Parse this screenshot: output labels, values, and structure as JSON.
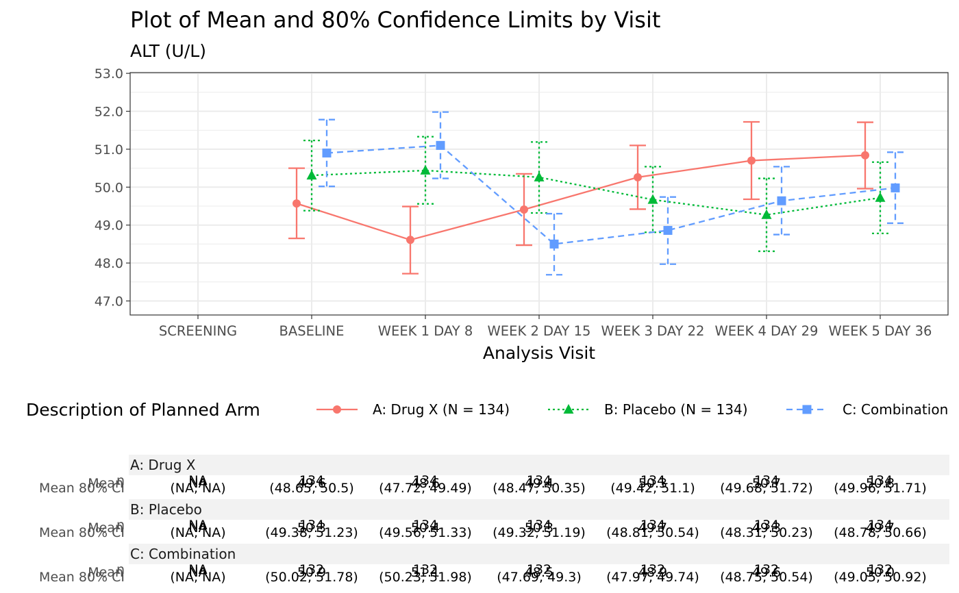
{
  "chart_data": {
    "type": "line",
    "title": "Plot of Mean and 80% Confidence Limits by Visit",
    "subtitle": "ALT (U/L)",
    "xlabel": "Analysis Visit",
    "ylabel": "",
    "ylim": [
      46.65,
      53.05
    ],
    "yticks": [
      "47.0",
      "48.0",
      "49.0",
      "50.0",
      "51.0",
      "52.0",
      "53.0"
    ],
    "ytick_values": [
      47,
      48,
      49,
      50,
      51,
      52,
      53
    ],
    "categories": [
      "SCREENING",
      "BASELINE",
      "WEEK 1 DAY 8",
      "WEEK 2 DAY 15",
      "WEEK 3 DAY 22",
      "WEEK 4 DAY 29",
      "WEEK 5 DAY 36"
    ],
    "grid": true,
    "legend": {
      "title": "Description of Planned Arm",
      "position": "bottom"
    },
    "series": [
      {
        "name": "A: Drug X (N = 134)",
        "color": "#F8766D",
        "marker": "circle",
        "linestyle": "solid",
        "means": [
          null,
          49.57,
          48.61,
          49.41,
          50.26,
          50.7,
          50.84
        ],
        "lower": [
          null,
          48.65,
          47.72,
          48.47,
          49.42,
          49.68,
          49.96
        ],
        "upper": [
          null,
          50.5,
          49.49,
          50.35,
          51.1,
          51.72,
          51.71
        ]
      },
      {
        "name": "B: Placebo (N = 134)",
        "color": "#00BA38",
        "marker": "triangle",
        "linestyle": "dotted",
        "means": [
          null,
          50.31,
          50.44,
          50.26,
          49.67,
          49.27,
          49.72
        ],
        "lower": [
          null,
          49.38,
          49.56,
          49.32,
          48.81,
          48.31,
          48.78
        ],
        "upper": [
          null,
          51.23,
          51.33,
          51.19,
          50.54,
          50.23,
          50.66
        ]
      },
      {
        "name": "C: Combination",
        "color": "#619CFF",
        "marker": "square",
        "linestyle": "dashed",
        "means": [
          null,
          50.9,
          51.1,
          48.5,
          48.86,
          49.64,
          49.98
        ],
        "lower": [
          null,
          50.02,
          50.23,
          47.69,
          47.97,
          48.75,
          49.05
        ],
        "upper": [
          null,
          51.78,
          51.98,
          49.3,
          49.74,
          50.54,
          50.92
        ]
      }
    ],
    "table": {
      "row_labels": [
        "n",
        "Mean",
        "Mean 80% CI"
      ],
      "groups": [
        {
          "label": "A: Drug X",
          "n": [
            "NA",
            "134",
            "134",
            "134",
            "134",
            "134",
            "134"
          ],
          "mean": [
            "NA",
            "49.6",
            "48.6",
            "49.4",
            "50.3",
            "50.7",
            "50.8"
          ],
          "ci": [
            "(NA, NA)",
            "(48.65, 50.5)",
            "(47.72, 49.49)",
            "(48.47, 50.35)",
            "(49.42, 51.1)",
            "(49.68, 51.72)",
            "(49.96, 51.71)"
          ]
        },
        {
          "label": "B: Placebo",
          "n": [
            "NA",
            "134",
            "134",
            "134",
            "134",
            "134",
            "134"
          ],
          "mean": [
            "NA",
            "50.3",
            "50.4",
            "50.3",
            "49.7",
            "49.3",
            "49.7"
          ],
          "ci": [
            "(NA, NA)",
            "(49.38, 51.23)",
            "(49.56, 51.33)",
            "(49.32, 51.19)",
            "(48.81, 50.54)",
            "(48.31, 50.23)",
            "(48.78, 50.66)"
          ]
        },
        {
          "label": "C: Combination",
          "n": [
            "NA",
            "132",
            "132",
            "132",
            "132",
            "132",
            "132"
          ],
          "mean": [
            "NA",
            "50.9",
            "51.1",
            "48.5",
            "48.9",
            "49.6",
            "50.0"
          ],
          "ci": [
            "(NA, NA)",
            "(50.02, 51.78)",
            "(50.23, 51.98)",
            "(47.69, 49.3)",
            "(47.97, 49.74)",
            "(48.75, 50.54)",
            "(49.05, 50.92)"
          ]
        }
      ]
    }
  }
}
